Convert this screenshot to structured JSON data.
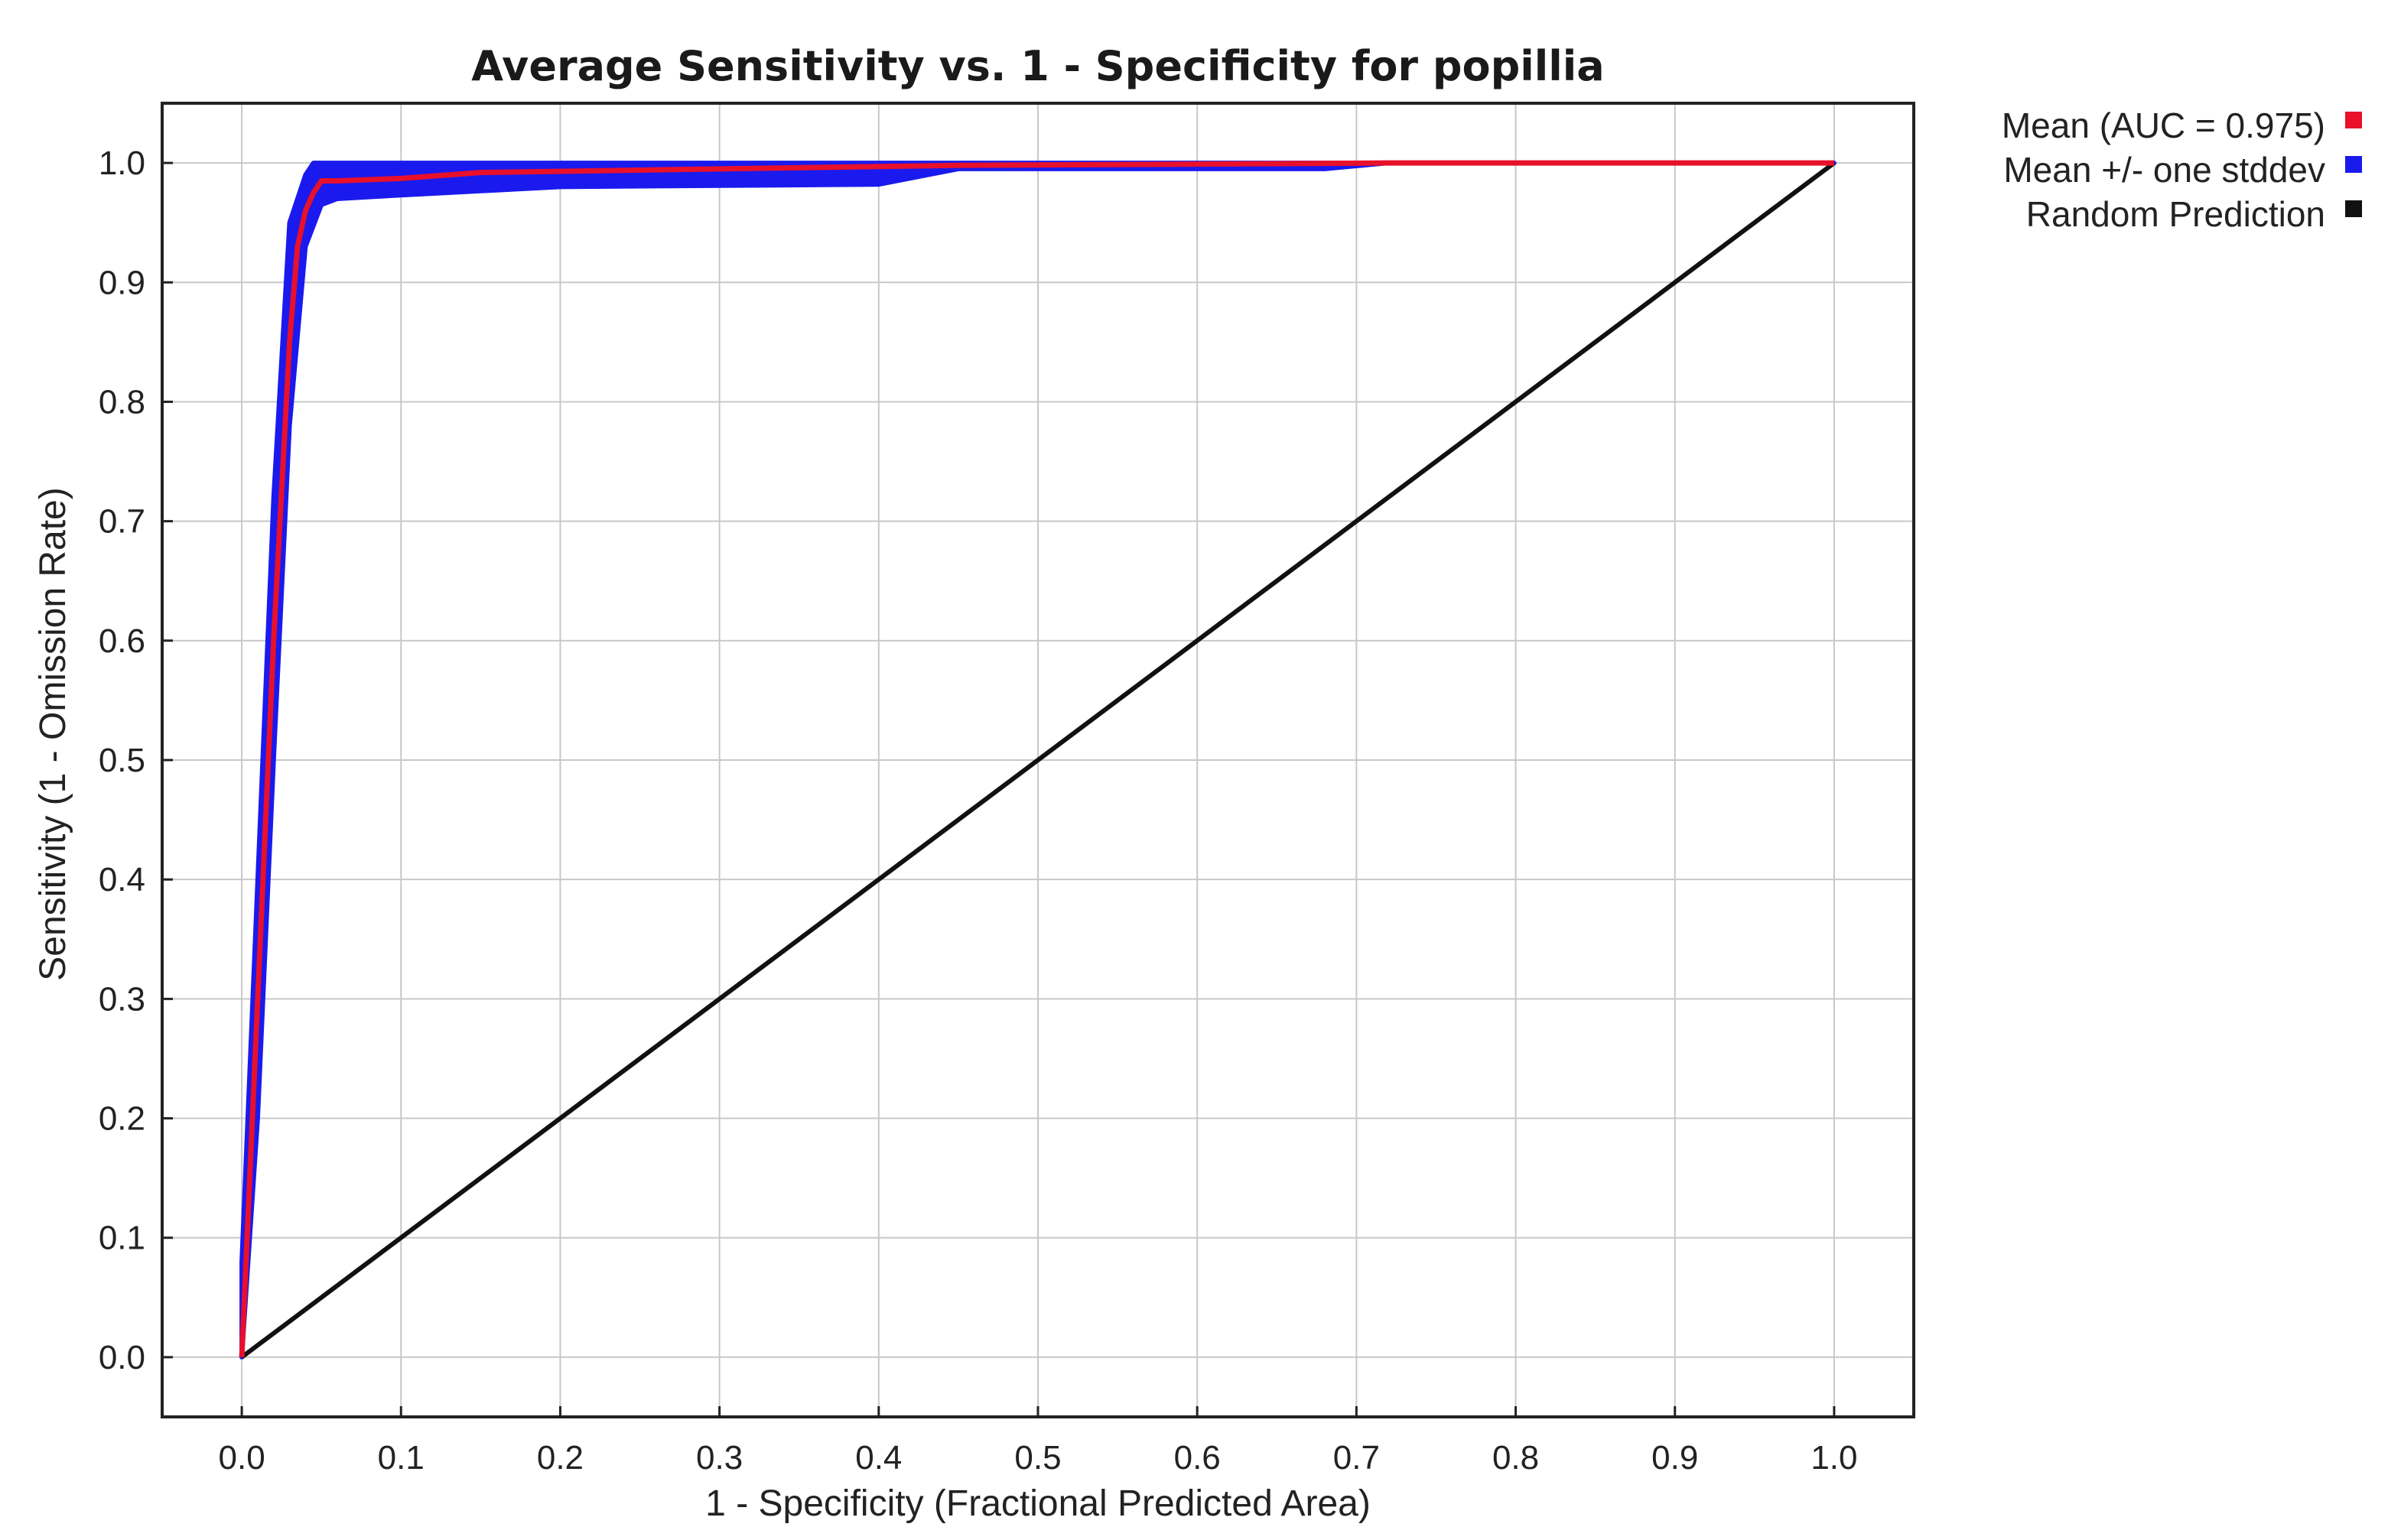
{
  "chart_data": {
    "type": "line",
    "title": "Average Sensitivity vs. 1 - Specificity for popillia",
    "xlabel": "1 - Specificity (Fractional Predicted Area)",
    "ylabel": "Sensitivity (1 - Omission Rate)",
    "xlim": [
      -0.05,
      1.05
    ],
    "ylim": [
      -0.05,
      1.05
    ],
    "xticks": [
      "0.0",
      "0.1",
      "0.2",
      "0.3",
      "0.4",
      "0.5",
      "0.6",
      "0.7",
      "0.8",
      "0.9",
      "1.0"
    ],
    "yticks": [
      "0.0",
      "0.1",
      "0.2",
      "0.3",
      "0.4",
      "0.5",
      "0.6",
      "0.7",
      "0.8",
      "0.9",
      "1.0"
    ],
    "grid": true,
    "legend_position": "outside-top-right",
    "series": [
      {
        "name": "Mean (AUC = 0.975)",
        "color": "#e8102a",
        "x": [
          0.0,
          0.01,
          0.02,
          0.03,
          0.035,
          0.04,
          0.045,
          0.05,
          0.06,
          0.1,
          0.15,
          0.3,
          0.45,
          0.6,
          0.72,
          1.0
        ],
        "y": [
          0.0,
          0.3,
          0.6,
          0.85,
          0.93,
          0.96,
          0.975,
          0.985,
          0.985,
          0.987,
          0.992,
          0.995,
          0.998,
          0.999,
          1.0,
          1.0
        ]
      },
      {
        "name": "Mean +/- one stddev",
        "color": "#1a1aee",
        "upper": {
          "x": [
            0.0,
            0.01,
            0.02,
            0.03,
            0.04,
            0.045,
            0.05,
            0.1,
            0.45,
            1.0
          ],
          "y": [
            0.08,
            0.4,
            0.72,
            0.95,
            0.99,
            1.0,
            1.0,
            1.0,
            1.0,
            1.0
          ]
        },
        "lower": {
          "x": [
            0.0,
            0.01,
            0.02,
            0.03,
            0.04,
            0.05,
            0.06,
            0.1,
            0.2,
            0.4,
            0.45,
            0.68,
            0.72,
            1.0
          ],
          "y": [
            0.0,
            0.2,
            0.5,
            0.78,
            0.93,
            0.965,
            0.97,
            0.973,
            0.98,
            0.982,
            0.995,
            0.995,
            1.0,
            1.0
          ]
        }
      },
      {
        "name": "Random Prediction",
        "color": "#111111",
        "x": [
          0.0,
          1.0
        ],
        "y": [
          0.0,
          1.0
        ]
      }
    ]
  }
}
